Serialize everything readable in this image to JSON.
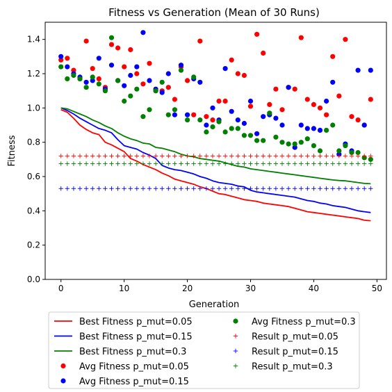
{
  "chart_data": {
    "type": "line",
    "title": "Fitness vs Generation (Mean of 30 Runs)",
    "xlabel": "Generation",
    "ylabel": "Fitness",
    "xlim": [
      -2.5,
      51.5
    ],
    "ylim": [
      0.0,
      1.5
    ],
    "xticks": [
      0,
      10,
      20,
      30,
      40,
      50
    ],
    "xtick_labels": [
      "0",
      "10",
      "20",
      "30",
      "40",
      "50"
    ],
    "yticks": [
      0.0,
      0.2,
      0.4,
      0.6,
      0.8,
      1.0,
      1.2,
      1.4
    ],
    "ytick_labels": [
      "0.0",
      "0.2",
      "0.4",
      "0.6",
      "0.8",
      "1.0",
      "1.2",
      "1.4"
    ],
    "grid": false,
    "legend_position": "below plot, two columns",
    "x": [
      0,
      1,
      2,
      3,
      4,
      5,
      6,
      7,
      8,
      9,
      10,
      11,
      12,
      13,
      14,
      15,
      16,
      17,
      18,
      19,
      20,
      21,
      22,
      23,
      24,
      25,
      26,
      27,
      28,
      29,
      30,
      31,
      32,
      33,
      34,
      35,
      36,
      37,
      38,
      39,
      40,
      41,
      42,
      43,
      44,
      45,
      46,
      47,
      48,
      49
    ],
    "series": [
      {
        "name": "Best Fitness p_mut=0.05",
        "kind": "line",
        "color": "#ff0000",
        "values": [
          0.99,
          0.975,
          0.94,
          0.9,
          0.875,
          0.855,
          0.845,
          0.8,
          0.785,
          0.765,
          0.745,
          0.705,
          0.69,
          0.67,
          0.655,
          0.64,
          0.62,
          0.605,
          0.585,
          0.575,
          0.565,
          0.555,
          0.54,
          0.53,
          0.515,
          0.5,
          0.495,
          0.485,
          0.475,
          0.465,
          0.46,
          0.455,
          0.445,
          0.44,
          0.435,
          0.43,
          0.425,
          0.415,
          0.405,
          0.395,
          0.39,
          0.385,
          0.38,
          0.375,
          0.37,
          0.365,
          0.36,
          0.355,
          0.345,
          0.342
        ]
      },
      {
        "name": "Best Fitness p_mut=0.15",
        "kind": "line",
        "color": "#0000ff",
        "values": [
          1.0,
          0.985,
          0.965,
          0.94,
          0.92,
          0.9,
          0.88,
          0.87,
          0.855,
          0.815,
          0.78,
          0.77,
          0.76,
          0.74,
          0.725,
          0.705,
          0.665,
          0.65,
          0.64,
          0.635,
          0.625,
          0.615,
          0.6,
          0.59,
          0.575,
          0.565,
          0.56,
          0.555,
          0.545,
          0.54,
          0.52,
          0.51,
          0.505,
          0.5,
          0.495,
          0.49,
          0.485,
          0.48,
          0.47,
          0.46,
          0.455,
          0.445,
          0.44,
          0.43,
          0.425,
          0.42,
          0.41,
          0.4,
          0.395,
          0.39
        ]
      },
      {
        "name": "Best Fitness p_mut=0.3",
        "kind": "line",
        "color": "#008000",
        "values": [
          1.0,
          0.995,
          0.98,
          0.965,
          0.95,
          0.93,
          0.915,
          0.895,
          0.88,
          0.855,
          0.835,
          0.82,
          0.81,
          0.795,
          0.79,
          0.77,
          0.765,
          0.755,
          0.745,
          0.73,
          0.72,
          0.715,
          0.705,
          0.7,
          0.695,
          0.69,
          0.68,
          0.67,
          0.66,
          0.655,
          0.645,
          0.64,
          0.635,
          0.63,
          0.625,
          0.62,
          0.615,
          0.61,
          0.605,
          0.6,
          0.595,
          0.59,
          0.585,
          0.58,
          0.577,
          0.575,
          0.57,
          0.565,
          0.56,
          0.558
        ]
      },
      {
        "name": "Avg Fitness p_mut=0.05",
        "kind": "scatter",
        "color": "#ff0000",
        "values": [
          1.28,
          1.29,
          1.22,
          1.17,
          1.39,
          1.23,
          1.17,
          1.12,
          1.37,
          1.35,
          1.24,
          1.34,
          1.2,
          1.14,
          1.26,
          1.1,
          1.1,
          1.12,
          1.05,
          1.24,
          1.16,
          0.96,
          1.39,
          0.95,
          0.93,
          1.04,
          1.04,
          1.28,
          1.2,
          1.19,
          1.01,
          1.43,
          1.32,
          1.02,
          1.11,
          0.99,
          1.12,
          1.11,
          1.41,
          1.05,
          1.02,
          1.0,
          0.96,
          1.3,
          1.07,
          1.4,
          0.95,
          0.93,
          0.9,
          1.05
        ]
      },
      {
        "name": "Avg Fitness p_mut=0.15",
        "kind": "scatter",
        "color": "#0000ff",
        "values": [
          1.3,
          1.24,
          1.2,
          1.18,
          1.15,
          1.16,
          1.29,
          1.11,
          1.25,
          1.16,
          1.13,
          1.19,
          1.24,
          1.44,
          1.16,
          1.11,
          1.09,
          1.2,
          0.96,
          1.25,
          0.96,
          1.17,
          1.15,
          0.9,
          1.0,
          0.93,
          1.23,
          0.98,
          0.93,
          0.91,
          1.04,
          0.85,
          0.95,
          0.96,
          0.94,
          0.9,
          1.12,
          0.77,
          0.9,
          0.88,
          0.88,
          0.87,
          1.04,
          1.15,
          0.73,
          0.79,
          0.75,
          1.22,
          0.9,
          1.22
        ]
      },
      {
        "name": "Avg Fitness p_mut=0.3",
        "kind": "scatter",
        "color": "#008000",
        "values": [
          1.24,
          1.17,
          1.19,
          1.17,
          1.12,
          1.18,
          1.14,
          1.1,
          1.41,
          1.16,
          1.04,
          1.07,
          1.11,
          0.95,
          0.99,
          1.1,
          1.15,
          0.96,
          0.99,
          1.22,
          0.93,
          1.18,
          0.93,
          0.86,
          0.89,
          0.92,
          0.86,
          0.88,
          0.88,
          0.84,
          0.84,
          0.81,
          0.81,
          0.97,
          0.83,
          0.8,
          0.79,
          0.79,
          0.8,
          0.82,
          0.78,
          0.75,
          0.87,
          0.9,
          0.75,
          0.78,
          0.74,
          0.74,
          0.71,
          0.7
        ]
      },
      {
        "name": "Result p_mut=0.05",
        "kind": "marker",
        "color": "#ff0000",
        "constant": 0.72
      },
      {
        "name": "Result p_mut=0.15",
        "kind": "marker",
        "color": "#0000ff",
        "constant": 0.53
      },
      {
        "name": "Result p_mut=0.3",
        "kind": "marker",
        "color": "#008000",
        "constant": 0.675
      }
    ]
  }
}
